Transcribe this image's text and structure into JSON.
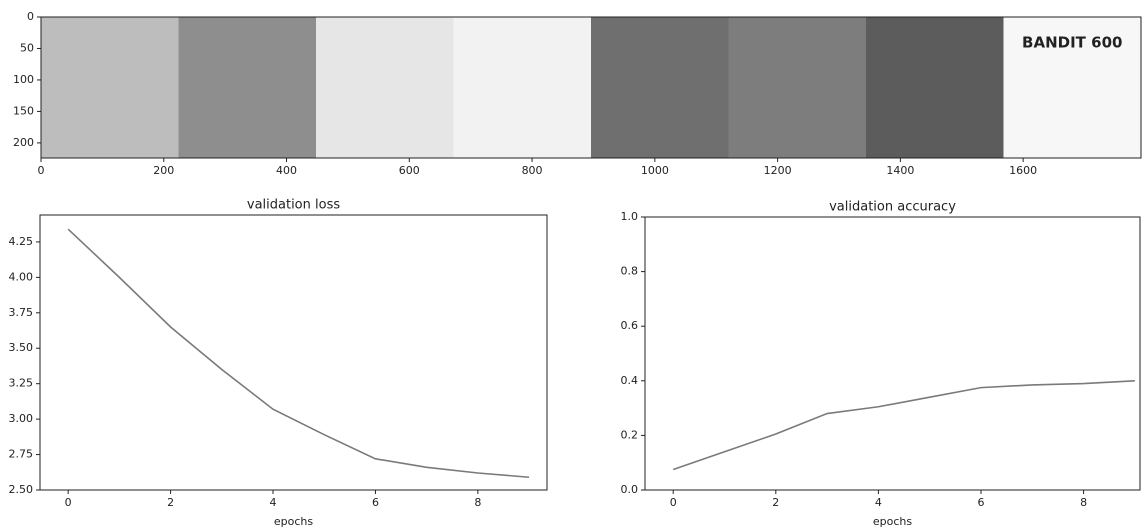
{
  "chart_data": [
    {
      "type": "image",
      "image_text": "BANDIT 600",
      "xlim": [
        0,
        1792
      ],
      "ylim": [
        224,
        0
      ],
      "xticks": [
        0,
        200,
        400,
        600,
        800,
        1000,
        1200,
        1400,
        1600
      ],
      "yticks": [
        0,
        50,
        100,
        150,
        200
      ]
    },
    {
      "type": "line",
      "title": "validation loss",
      "x_label": "epochs",
      "color": "#7a7a7a",
      "x": [
        0,
        1,
        2,
        3,
        4,
        5,
        6,
        7,
        8,
        9
      ],
      "values": [
        4.34,
        4.0,
        3.65,
        3.35,
        3.07,
        2.89,
        2.72,
        2.66,
        2.62,
        2.59
      ],
      "xlim": [
        -0.55,
        9.35
      ],
      "ylim": [
        2.5,
        4.44
      ],
      "xticks": [
        0,
        2,
        4,
        6,
        8
      ],
      "yticks": [
        {
          "value": 2.5,
          "label": "2.50"
        },
        2.75,
        {
          "value": 3.0,
          "label": "3.00"
        },
        3.25,
        {
          "value": 3.5,
          "label": "3.50"
        },
        3.75,
        {
          "value": 4.0,
          "label": "4.00"
        },
        4.25
      ]
    },
    {
      "type": "line",
      "title": "validation accuracy",
      "x_label": "epochs",
      "color": "#7a7a7a",
      "x": [
        0,
        1,
        2,
        3,
        4,
        5,
        6,
        7,
        8,
        9
      ],
      "values": [
        0.075,
        0.14,
        0.205,
        0.28,
        0.305,
        0.34,
        0.375,
        0.385,
        0.39,
        0.4
      ],
      "xlim": [
        -0.55,
        9.1
      ],
      "ylim": [
        0,
        1
      ],
      "xticks": [
        0,
        2,
        4,
        6,
        8
      ],
      "yticks": [
        {
          "value": 0,
          "label": "0.0"
        },
        0.2,
        0.4,
        0.6,
        0.8,
        {
          "value": 1,
          "label": "1.0"
        }
      ]
    }
  ]
}
